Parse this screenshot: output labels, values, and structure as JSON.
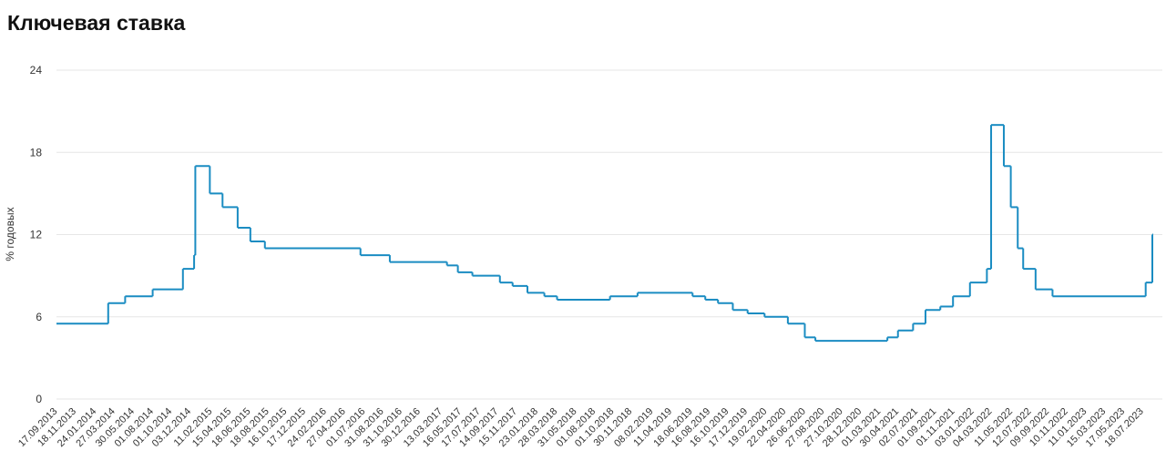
{
  "chart_data": {
    "type": "step-line",
    "title": "Ключевая ставка",
    "y_label": "% годовых",
    "xlim": [
      "13.09.2013",
      "18.08.2023"
    ],
    "ylim": [
      0,
      24
    ],
    "yticks": [
      0,
      6,
      12,
      18,
      24
    ],
    "grid": true,
    "xticks": [
      "17.09.2013",
      "18.11.2013",
      "24.01.2014",
      "27.03.2014",
      "30.05.2014",
      "01.08.2014",
      "01.10.2014",
      "03.12.2014",
      "11.02.2015",
      "15.04.2015",
      "18.06.2015",
      "18.08.2015",
      "16.10.2015",
      "17.12.2015",
      "24.02.2016",
      "27.04.2016",
      "01.07.2016",
      "31.08.2016",
      "31.10.2016",
      "30.12.2016",
      "13.03.2017",
      "16.05.2017",
      "17.07.2017",
      "14.09.2017",
      "15.11.2017",
      "23.01.2018",
      "28.03.2018",
      "31.05.2018",
      "01.08.2018",
      "01.10.2018",
      "30.11.2018",
      "08.02.2019",
      "11.04.2019",
      "18.06.2019",
      "16.08.2019",
      "16.10.2019",
      "17.12.2019",
      "19.02.2020",
      "22.04.2020",
      "26.06.2020",
      "27.08.2020",
      "27.10.2020",
      "28.12.2020",
      "01.03.2021",
      "30.04.2021",
      "02.07.2021",
      "01.09.2021",
      "01.11.2021",
      "03.01.2022",
      "04.03.2022",
      "11.05.2022",
      "12.07.2022",
      "09.09.2022",
      "10.11.2022",
      "11.01.2023",
      "15.03.2023",
      "17.05.2023",
      "18.07.2023"
    ],
    "series": [
      {
        "name": "Ключевая ставка",
        "color": "#1a8cc2",
        "x": [
          "13.09.2013",
          "03.03.2014",
          "28.04.2014",
          "28.07.2014",
          "05.11.2014",
          "12.12.2014",
          "16.12.2014",
          "02.02.2015",
          "16.03.2015",
          "05.05.2015",
          "16.06.2015",
          "03.08.2015",
          "14.06.2016",
          "19.09.2016",
          "27.03.2017",
          "02.05.2017",
          "19.06.2017",
          "18.09.2017",
          "30.10.2017",
          "18.12.2017",
          "12.02.2018",
          "26.03.2018",
          "17.09.2018",
          "17.12.2018",
          "17.06.2019",
          "29.07.2019",
          "09.09.2019",
          "28.10.2019",
          "16.12.2019",
          "10.02.2020",
          "27.04.2020",
          "22.06.2020",
          "27.07.2020",
          "22.03.2021",
          "26.04.2021",
          "15.06.2021",
          "26.07.2021",
          "13.09.2021",
          "25.10.2021",
          "20.12.2021",
          "14.02.2022",
          "28.02.2022",
          "11.04.2022",
          "04.05.2022",
          "27.05.2022",
          "14.06.2022",
          "25.07.2022",
          "19.09.2022",
          "24.07.2023",
          "15.08.2023"
        ],
        "values": [
          5.5,
          7,
          7.5,
          8,
          9.5,
          10.5,
          17,
          15,
          14,
          12.5,
          11.5,
          11,
          10.5,
          10,
          9.75,
          9.25,
          9,
          8.5,
          8.25,
          7.75,
          7.5,
          7.25,
          7.5,
          7.75,
          7.5,
          7.25,
          7,
          6.5,
          6.25,
          6,
          5.5,
          4.5,
          4.25,
          4.5,
          5,
          5.5,
          6.5,
          6.75,
          7.5,
          8.5,
          9.5,
          20,
          17,
          14,
          11,
          9.5,
          8,
          7.5,
          8.5,
          12
        ]
      }
    ]
  }
}
